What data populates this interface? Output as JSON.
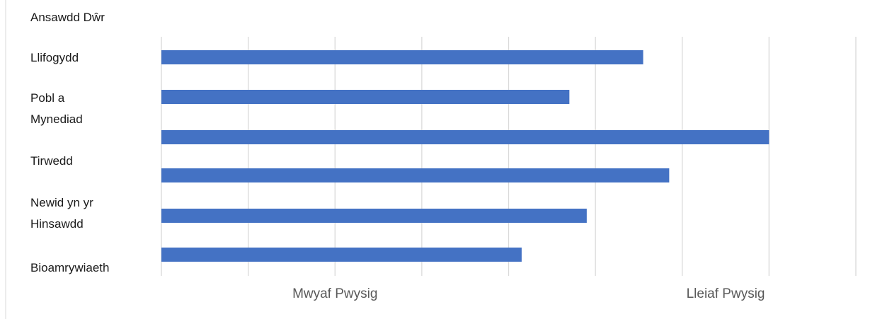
{
  "chart_data": {
    "type": "bar",
    "orientation": "horizontal",
    "categories": [
      "Ansawdd Dŵr",
      "Llifogydd",
      "Pobl a Mynediad",
      "Tirwedd",
      "Newid yn yr Hinsawdd",
      "Bioamrywiaeth"
    ],
    "category_lines": [
      [
        "Ansawdd Dŵr"
      ],
      [
        "Llifogydd"
      ],
      [
        "Pobl a",
        "Mynediad"
      ],
      [
        "Tirwedd"
      ],
      [
        "Newid yn yr",
        "Hinsawdd"
      ],
      [
        "Bioamrywiaeth"
      ]
    ],
    "values": [
      5.55,
      4.7,
      7.0,
      5.85,
      4.9,
      4.15
    ],
    "xlim": [
      0,
      8
    ],
    "x_tick_count": 8,
    "x_axis_labels": [
      {
        "text": "Mwyaf Pwysig",
        "at": 2
      },
      {
        "text": "Lleiaf Pwysig",
        "at": 6.5
      }
    ],
    "grid": true,
    "bar_color": "#4472C4",
    "grid_color": "#D9D9D9"
  }
}
